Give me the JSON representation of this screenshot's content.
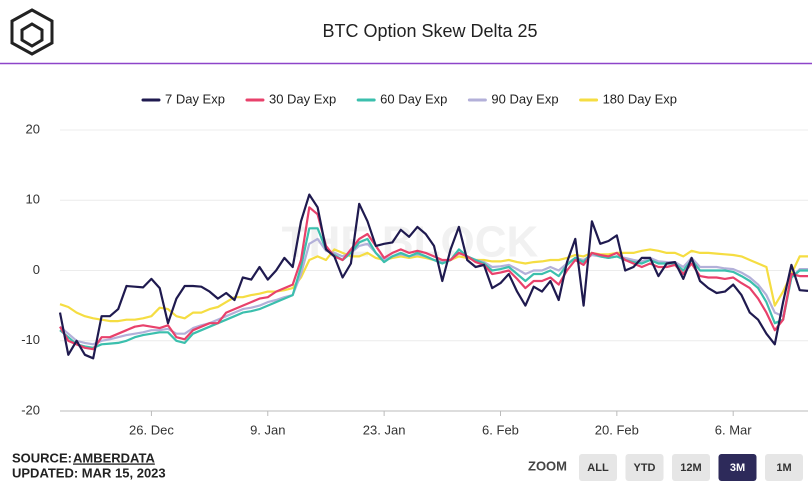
{
  "chart_data": {
    "type": "line",
    "title": "BTC Option Skew Delta 25",
    "watermark": "THE BLOCK",
    "x": [
      "15. Dec",
      "16. Dec",
      "17. Dec",
      "18. Dec",
      "19. Dec",
      "20. Dec",
      "21. Dec",
      "22. Dec",
      "23. Dec",
      "24. Dec",
      "25. Dec",
      "26. Dec",
      "27. Dec",
      "28. Dec",
      "29. Dec",
      "30. Dec",
      "31. Dec",
      "1. Jan",
      "2. Jan",
      "3. Jan",
      "4. Jan",
      "5. Jan",
      "6. Jan",
      "7. Jan",
      "8. Jan",
      "9. Jan",
      "10. Jan",
      "11. Jan",
      "12. Jan",
      "13. Jan",
      "14. Jan",
      "15. Jan",
      "16. Jan",
      "17. Jan",
      "18. Jan",
      "19. Jan",
      "20. Jan",
      "21. Jan",
      "22. Jan",
      "23. Jan",
      "24. Jan",
      "25. Jan",
      "26. Jan",
      "27. Jan",
      "28. Jan",
      "29. Jan",
      "30. Jan",
      "31. Jan",
      "1. Feb",
      "2. Feb",
      "3. Feb",
      "4. Feb",
      "5. Feb",
      "6. Feb",
      "7. Feb",
      "8. Feb",
      "9. Feb",
      "10. Feb",
      "11. Feb",
      "12. Feb",
      "13. Feb",
      "14. Feb",
      "15. Feb",
      "16. Feb",
      "17. Feb",
      "18. Feb",
      "19. Feb",
      "20. Feb",
      "21. Feb",
      "22. Feb",
      "23. Feb",
      "24. Feb",
      "25. Feb",
      "26. Feb",
      "27. Feb",
      "28. Feb",
      "1. Mar",
      "2. Mar",
      "3. Mar",
      "4. Mar",
      "5. Mar",
      "6. Mar",
      "7. Mar",
      "8. Mar",
      "9. Mar",
      "10. Mar",
      "11. Mar",
      "12. Mar",
      "13. Mar",
      "14. Mar",
      "15. Mar"
    ],
    "xticks": [
      "26. Dec",
      "9. Jan",
      "23. Jan",
      "6. Feb",
      "20. Feb",
      "6. Mar"
    ],
    "ylim": [
      -20,
      20
    ],
    "yticks": [
      20,
      10,
      0,
      -10,
      -20
    ],
    "grid": true,
    "legend": "top",
    "series": [
      {
        "name": "7 Day Exp",
        "color": "#1f1a4f",
        "values": [
          -6,
          -12,
          -10,
          -12,
          -12.5,
          -6.5,
          -6.5,
          -5.5,
          -2.2,
          -2.3,
          -2.4,
          -1.2,
          -2.5,
          -7.5,
          -4,
          -2.2,
          -2.2,
          -2.3,
          -3,
          -4,
          -3.2,
          -4.2,
          -1,
          -1.3,
          0.5,
          -1.3,
          0,
          1.8,
          0.5,
          7,
          10.8,
          9,
          3,
          2,
          -1,
          1,
          9.5,
          7,
          3.5,
          3.8,
          4,
          5.8,
          4.8,
          6.2,
          5.2,
          3.5,
          -1.5,
          3,
          6.2,
          1.5,
          0.5,
          0.8,
          -2.5,
          -1.8,
          -0.5,
          -3,
          -5,
          -2.3,
          -3,
          -1.5,
          -4.2,
          1.2,
          4.5,
          -5,
          7,
          3.8,
          4.2,
          5,
          0,
          0.5,
          1.8,
          1.8,
          -0.8,
          1,
          1.2,
          -1.2,
          1.8,
          -1.5,
          -2.5,
          -3.2,
          -3,
          -2,
          -3.5,
          -6,
          -7,
          -9,
          -10.5,
          -4.5,
          0.8,
          -2.8,
          -2.9
        ]
      },
      {
        "name": "30 Day Exp",
        "color": "#e8416b",
        "values": [
          -8,
          -10,
          -10.5,
          -11,
          -11.2,
          -9.5,
          -9.5,
          -9,
          -8.5,
          -8,
          -7.8,
          -8,
          -8.2,
          -7.8,
          -9.5,
          -9.8,
          -8.5,
          -8,
          -7.5,
          -7.5,
          -6,
          -5.5,
          -5,
          -4.5,
          -4,
          -3.8,
          -3,
          -2.5,
          -2,
          1.5,
          9,
          8,
          3.5,
          2,
          1.5,
          3,
          4.5,
          5.2,
          3.5,
          1.8,
          2.5,
          3,
          2.5,
          2.8,
          2.5,
          2,
          1.5,
          1.5,
          2.5,
          2,
          1.2,
          0.8,
          -0.5,
          -0.3,
          0,
          -1.2,
          -2.5,
          -1.5,
          -1.5,
          -1,
          -2,
          0,
          1.5,
          0.8,
          2.5,
          2.2,
          2,
          2.5,
          1.5,
          1,
          0.5,
          1,
          0.5,
          0.5,
          0.8,
          -0.5,
          1,
          -0.8,
          -1,
          -1,
          -1.2,
          -1,
          -1.8,
          -2.5,
          -4,
          -6,
          -8.5,
          -7,
          -0.5,
          -0.8,
          -0.8
        ]
      },
      {
        "name": "60 Day Exp",
        "color": "#3bbfad",
        "values": [
          -8.5,
          -9.5,
          -10.5,
          -10.8,
          -11,
          -10.5,
          -10.4,
          -10.3,
          -10,
          -9.5,
          -9.2,
          -9,
          -8.8,
          -8.8,
          -10,
          -10.3,
          -9,
          -8.5,
          -8,
          -7.5,
          -7,
          -6.5,
          -6,
          -5.8,
          -5.5,
          -5,
          -4.5,
          -4,
          -3.5,
          0.5,
          6,
          6,
          3,
          2.2,
          1.5,
          2.5,
          4,
          4.5,
          2.5,
          1.2,
          2,
          2.5,
          2,
          2.5,
          2,
          1.5,
          1,
          1.5,
          3,
          2,
          1.5,
          1,
          0,
          0.2,
          0.5,
          -0.5,
          -1.5,
          -0.5,
          -0.5,
          0,
          -0.8,
          0.8,
          1.8,
          1.2,
          2.5,
          2,
          1.8,
          2,
          1.5,
          1.2,
          1,
          1.5,
          1,
          1,
          1,
          0,
          1.5,
          0,
          0,
          0,
          0,
          -0.2,
          -0.8,
          -1.5,
          -2.5,
          -4.5,
          -7.5,
          -7,
          -1,
          0,
          0
        ]
      },
      {
        "name": "90 Day Exp",
        "color": "#b3b0d9",
        "values": [
          -8,
          -9,
          -10,
          -10.3,
          -10.5,
          -10,
          -9.8,
          -9.5,
          -9.2,
          -9,
          -8.8,
          -8.5,
          -8.5,
          -8.3,
          -9,
          -9,
          -8.2,
          -7.8,
          -7.5,
          -7,
          -6.5,
          -6,
          -5.5,
          -5.3,
          -5,
          -4.5,
          -4.2,
          -3.8,
          -3.5,
          -0.5,
          3.8,
          4.5,
          2.8,
          2.5,
          2,
          2.5,
          3.5,
          3.8,
          2.5,
          1.5,
          2,
          2.3,
          2,
          2.3,
          2,
          1.5,
          1.2,
          1.5,
          2.5,
          2,
          1.5,
          1.2,
          0.5,
          0.6,
          0.8,
          0.2,
          -0.5,
          0,
          0,
          0.5,
          0,
          1,
          1.8,
          1.5,
          2.2,
          2,
          1.8,
          2,
          1.8,
          1.5,
          1.3,
          1.8,
          1.3,
          1.2,
          1.2,
          0.5,
          1.8,
          0.5,
          0.5,
          0.5,
          0.3,
          0.2,
          -0.3,
          -1,
          -2,
          -3.5,
          -6,
          -6.5,
          -1,
          0.2,
          0.2
        ]
      },
      {
        "name": "180 Day Exp",
        "color": "#f5dd42",
        "values": [
          -4.8,
          -5.2,
          -6,
          -6.5,
          -6.8,
          -7,
          -7.2,
          -7.2,
          -7,
          -7,
          -6.8,
          -6.5,
          -5.3,
          -5.5,
          -6.5,
          -6.8,
          -6,
          -6,
          -5.5,
          -5.2,
          -4.5,
          -3.8,
          -3.8,
          -3.5,
          -3.3,
          -3,
          -3,
          -2.8,
          -2.5,
          -1,
          1.5,
          2,
          1.5,
          3,
          2.5,
          2,
          2,
          2.5,
          1.8,
          1.5,
          1.8,
          2,
          1.8,
          2,
          1.8,
          1.5,
          1.3,
          1.5,
          2,
          1.8,
          1.5,
          1.5,
          1.3,
          1.3,
          1.5,
          1.2,
          1,
          1.2,
          1.3,
          1.5,
          1.5,
          1.8,
          2.2,
          2,
          2.5,
          2.3,
          2.3,
          2.5,
          2.5,
          2.5,
          2.8,
          3,
          2.8,
          2.5,
          2.5,
          2,
          2.8,
          2.5,
          2.5,
          2.4,
          2.3,
          2.2,
          2,
          1.5,
          1,
          0.5,
          -5,
          -3,
          -0.5,
          2,
          2
        ]
      }
    ]
  },
  "footer": {
    "source_label": "SOURCE:",
    "source": "AMBERDATA",
    "updated": "UPDATED: MAR 15, 2023"
  },
  "zoom": {
    "label": "ZOOM",
    "buttons": [
      "ALL",
      "YTD",
      "12M",
      "3M",
      "1M"
    ],
    "active": "3M"
  }
}
